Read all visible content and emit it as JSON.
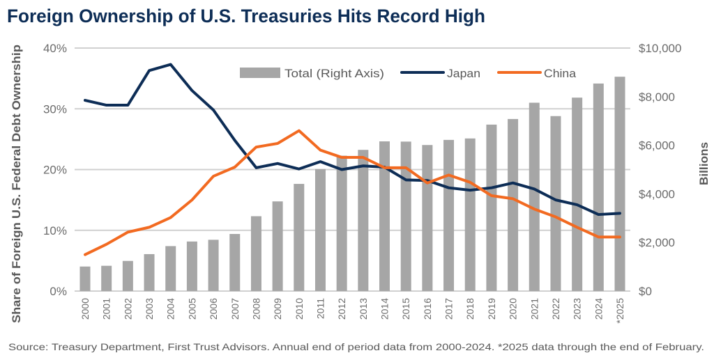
{
  "chart_data": {
    "type": "bar+line",
    "title": "Foreign Ownership of U.S. Treasuries Hits Record High",
    "ylabel_left": "Share of Foreign U.S. Federal Debt Ownership",
    "ylabel_right": "Billions",
    "ylim_left": [
      0,
      40
    ],
    "ylim_right": [
      0,
      10000
    ],
    "left_ticks": [
      "0%",
      "10%",
      "20%",
      "30%",
      "40%"
    ],
    "right_ticks": [
      "$0",
      "$2,000",
      "$4,000",
      "$6,000",
      "$8,000",
      "$10,000"
    ],
    "grid": true,
    "legend_position": "top-center",
    "categories": [
      "2000",
      "2001",
      "2002",
      "2003",
      "2004",
      "2005",
      "2006",
      "2007",
      "2008",
      "2009",
      "2010",
      "2011",
      "2012",
      "2013",
      "2014",
      "2015",
      "2016",
      "2017",
      "2018",
      "2019",
      "2020",
      "2021",
      "2022",
      "2023",
      "2024",
      "*2025"
    ],
    "series": [
      {
        "name": "Total (Right Axis)",
        "type": "bar",
        "axis": "right",
        "color": "#a6a6a6",
        "values": [
          1010,
          1040,
          1240,
          1520,
          1850,
          2040,
          2110,
          2350,
          3080,
          3690,
          4410,
          5020,
          5570,
          5810,
          6160,
          6150,
          6010,
          6220,
          6280,
          6850,
          7080,
          7750,
          7200,
          7960,
          8540,
          8820
        ]
      },
      {
        "name": "Japan",
        "type": "line",
        "axis": "left",
        "color": "#0d2d56",
        "values": [
          31.4,
          30.6,
          30.6,
          36.3,
          37.3,
          33.0,
          29.8,
          24.8,
          20.3,
          21.0,
          20.1,
          21.3,
          20.0,
          20.6,
          20.4,
          18.3,
          18.2,
          17.0,
          16.6,
          17.0,
          17.8,
          16.8,
          15.0,
          14.2,
          12.6,
          12.8
        ]
      },
      {
        "name": "China",
        "type": "line",
        "axis": "left",
        "color": "#f26a21",
        "values": [
          6.0,
          7.7,
          9.7,
          10.5,
          12.1,
          15.0,
          18.9,
          20.4,
          23.7,
          24.3,
          26.4,
          23.2,
          22.0,
          22.0,
          20.3,
          20.3,
          17.8,
          19.1,
          17.9,
          15.7,
          15.2,
          13.5,
          12.2,
          10.5,
          8.9,
          8.9
        ]
      }
    ],
    "source": "Source: Treasury Department, First Trust Advisors. Annual end of period data from 2000-2024. *2025 data through the end of February."
  }
}
